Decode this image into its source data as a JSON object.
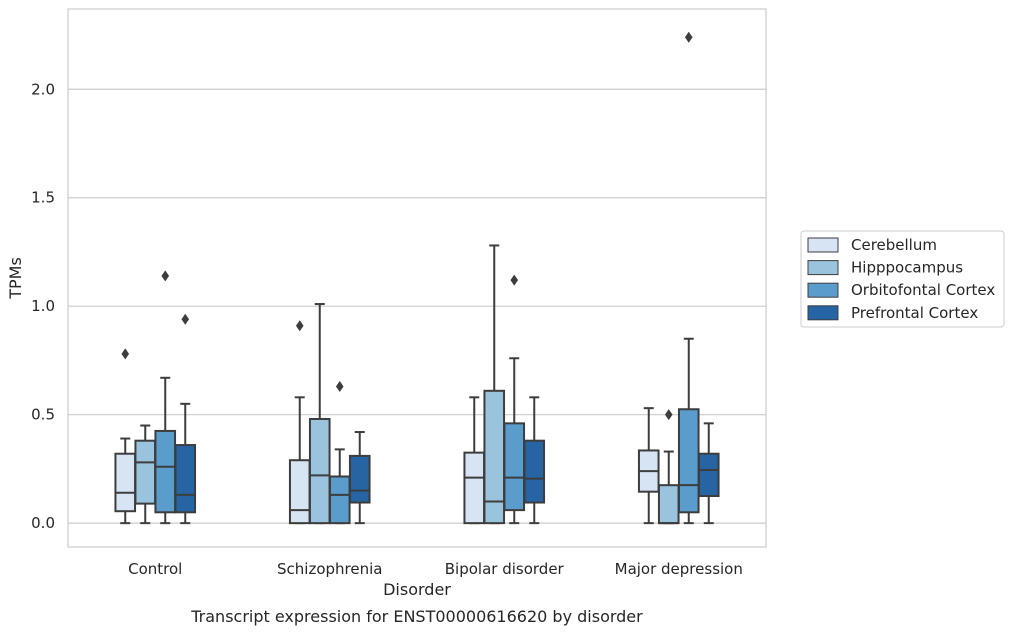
{
  "chart_data": {
    "type": "boxplot",
    "caption": "Transcript expression for ENST00000616620 by disorder",
    "xlabel": "Disorder",
    "ylabel": "TPMs",
    "ylim": [
      -0.11,
      2.37
    ],
    "yticks": [
      0.0,
      0.5,
      1.0,
      1.5,
      2.0
    ],
    "ytick_labels": [
      "0.0",
      "0.5",
      "1.0",
      "1.5",
      "2.0"
    ],
    "grid": "horizontal",
    "legend_position": "right",
    "categories": [
      "Control",
      "Schizophrenia",
      "Bipolar disorder",
      "Major depression"
    ],
    "series": [
      {
        "name": "Cerebellum",
        "color": "#d6e4f3",
        "boxes": [
          {
            "whisker_low": 0.0,
            "q1": 0.055,
            "median": 0.14,
            "q3": 0.32,
            "whisker_high": 0.39,
            "outliers": [
              0.78
            ]
          },
          {
            "whisker_low": 0.0,
            "q1": 0.0,
            "median": 0.06,
            "q3": 0.29,
            "whisker_high": 0.58,
            "outliers": [
              0.91
            ]
          },
          {
            "whisker_low": 0.0,
            "q1": 0.0,
            "median": 0.21,
            "q3": 0.325,
            "whisker_high": 0.58,
            "outliers": []
          },
          {
            "whisker_low": 0.0,
            "q1": 0.145,
            "median": 0.24,
            "q3": 0.335,
            "whisker_high": 0.53,
            "outliers": []
          }
        ]
      },
      {
        "name": "Hipppocampus",
        "color": "#9ac4de",
        "boxes": [
          {
            "whisker_low": 0.0,
            "q1": 0.09,
            "median": 0.28,
            "q3": 0.38,
            "whisker_high": 0.45,
            "outliers": []
          },
          {
            "whisker_low": 0.0,
            "q1": 0.0,
            "median": 0.22,
            "q3": 0.48,
            "whisker_high": 1.01,
            "outliers": []
          },
          {
            "whisker_low": 0.0,
            "q1": 0.0,
            "median": 0.1,
            "q3": 0.61,
            "whisker_high": 1.28,
            "outliers": []
          },
          {
            "whisker_low": 0.0,
            "q1": 0.0,
            "median": 0.0,
            "q3": 0.175,
            "whisker_high": 0.33,
            "outliers": [
              0.5
            ]
          }
        ]
      },
      {
        "name": "Orbitofontal Cortex",
        "color": "#5a9ccc",
        "boxes": [
          {
            "whisker_low": 0.0,
            "q1": 0.05,
            "median": 0.26,
            "q3": 0.425,
            "whisker_high": 0.67,
            "outliers": [
              1.14
            ]
          },
          {
            "whisker_low": 0.0,
            "q1": 0.0,
            "median": 0.13,
            "q3": 0.215,
            "whisker_high": 0.34,
            "outliers": [
              0.63
            ]
          },
          {
            "whisker_low": 0.0,
            "q1": 0.06,
            "median": 0.21,
            "q3": 0.46,
            "whisker_high": 0.76,
            "outliers": [
              1.12
            ]
          },
          {
            "whisker_low": 0.0,
            "q1": 0.05,
            "median": 0.175,
            "q3": 0.525,
            "whisker_high": 0.85,
            "outliers": [
              2.24
            ]
          }
        ]
      },
      {
        "name": "Prefrontal Cortex",
        "color": "#2764a3",
        "boxes": [
          {
            "whisker_low": 0.0,
            "q1": 0.05,
            "median": 0.13,
            "q3": 0.36,
            "whisker_high": 0.55,
            "outliers": [
              0.94
            ]
          },
          {
            "whisker_low": 0.0,
            "q1": 0.095,
            "median": 0.15,
            "q3": 0.31,
            "whisker_high": 0.42,
            "outliers": []
          },
          {
            "whisker_low": 0.0,
            "q1": 0.095,
            "median": 0.205,
            "q3": 0.38,
            "whisker_high": 0.58,
            "outliers": []
          },
          {
            "whisker_low": 0.0,
            "q1": 0.125,
            "median": 0.245,
            "q3": 0.32,
            "whisker_high": 0.46,
            "outliers": []
          }
        ]
      }
    ]
  }
}
